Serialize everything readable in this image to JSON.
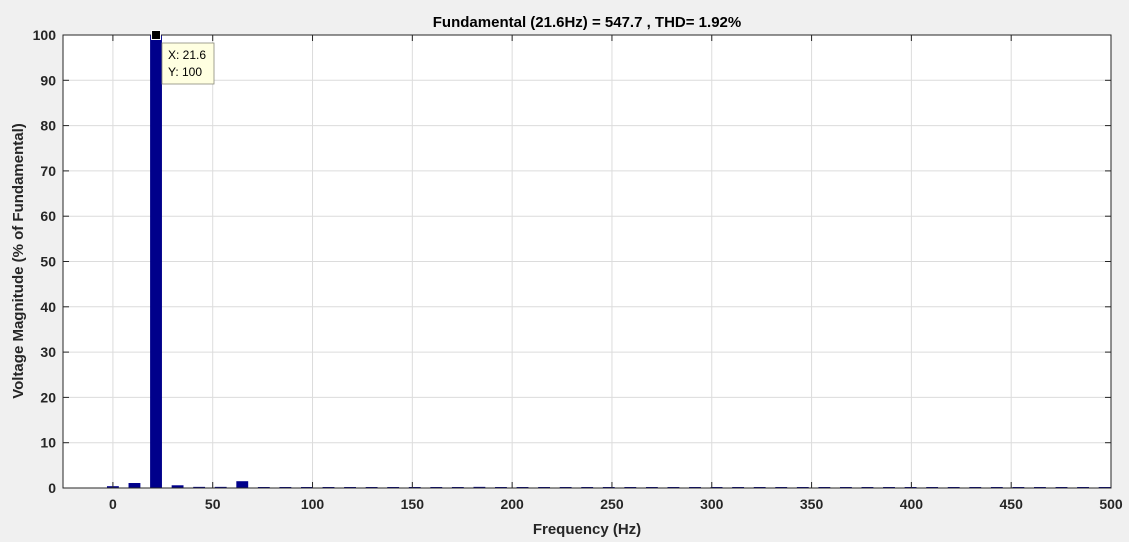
{
  "colors": {
    "figure_bg": "#f0f0f0",
    "axes_bg": "#ffffff",
    "axis_line": "#262626",
    "grid": "#dcdcdc",
    "bar": "#00008b",
    "datatip_bg": "#ffffe1",
    "datatip_marker": "#000000"
  },
  "chart_data": {
    "type": "bar",
    "title": "Fundamental (21.6Hz) = 547.7 , THD= 1.92%",
    "xlabel": "Frequency (Hz)",
    "ylabel": "Voltage Magnitude (% of Fundamental)",
    "xlim": [
      -25,
      500
    ],
    "ylim": [
      0,
      100
    ],
    "xticks": [
      0,
      50,
      100,
      150,
      200,
      250,
      300,
      350,
      400,
      450,
      500
    ],
    "yticks": [
      0,
      10,
      20,
      30,
      40,
      50,
      60,
      70,
      80,
      90,
      100
    ],
    "grid": true,
    "x": [
      0,
      10.8,
      21.6,
      32.4,
      43.2,
      54,
      64.8,
      75.6,
      86.4,
      97.2,
      108,
      118.8,
      129.6,
      140.4,
      151.2,
      162,
      172.8,
      183.6,
      194.4,
      205.2,
      216,
      226.8,
      237.6,
      248.4,
      259.2,
      270,
      280.8,
      291.6,
      302.4,
      313.2,
      324,
      334.8,
      345.6,
      356.4,
      367.2,
      378,
      388.8,
      399.6,
      410.4,
      421.2,
      432,
      442.8,
      453.6,
      464.4,
      475.2,
      486,
      496.8
    ],
    "values": [
      0.4,
      1.1,
      100,
      0.6,
      0.25,
      0.25,
      1.5,
      0.1,
      0.05,
      0.05,
      0.05,
      0.05,
      0.05,
      0.05,
      0.05,
      0.05,
      0.05,
      0.25,
      0.05,
      0.05,
      0.05,
      0.05,
      0.05,
      0.05,
      0.05,
      0.15,
      0.15,
      0.05,
      0.2,
      0.15,
      0.2,
      0.05,
      0.05,
      0.05,
      0.05,
      0.05,
      0.2,
      0.05,
      0.05,
      0.05,
      0.05,
      0.05,
      0.05,
      0.05,
      0.05,
      0.05,
      0.05
    ],
    "datatip": {
      "x": 21.6,
      "y": 100,
      "x_text": "X: 21.6",
      "y_text": "Y: 100"
    }
  }
}
